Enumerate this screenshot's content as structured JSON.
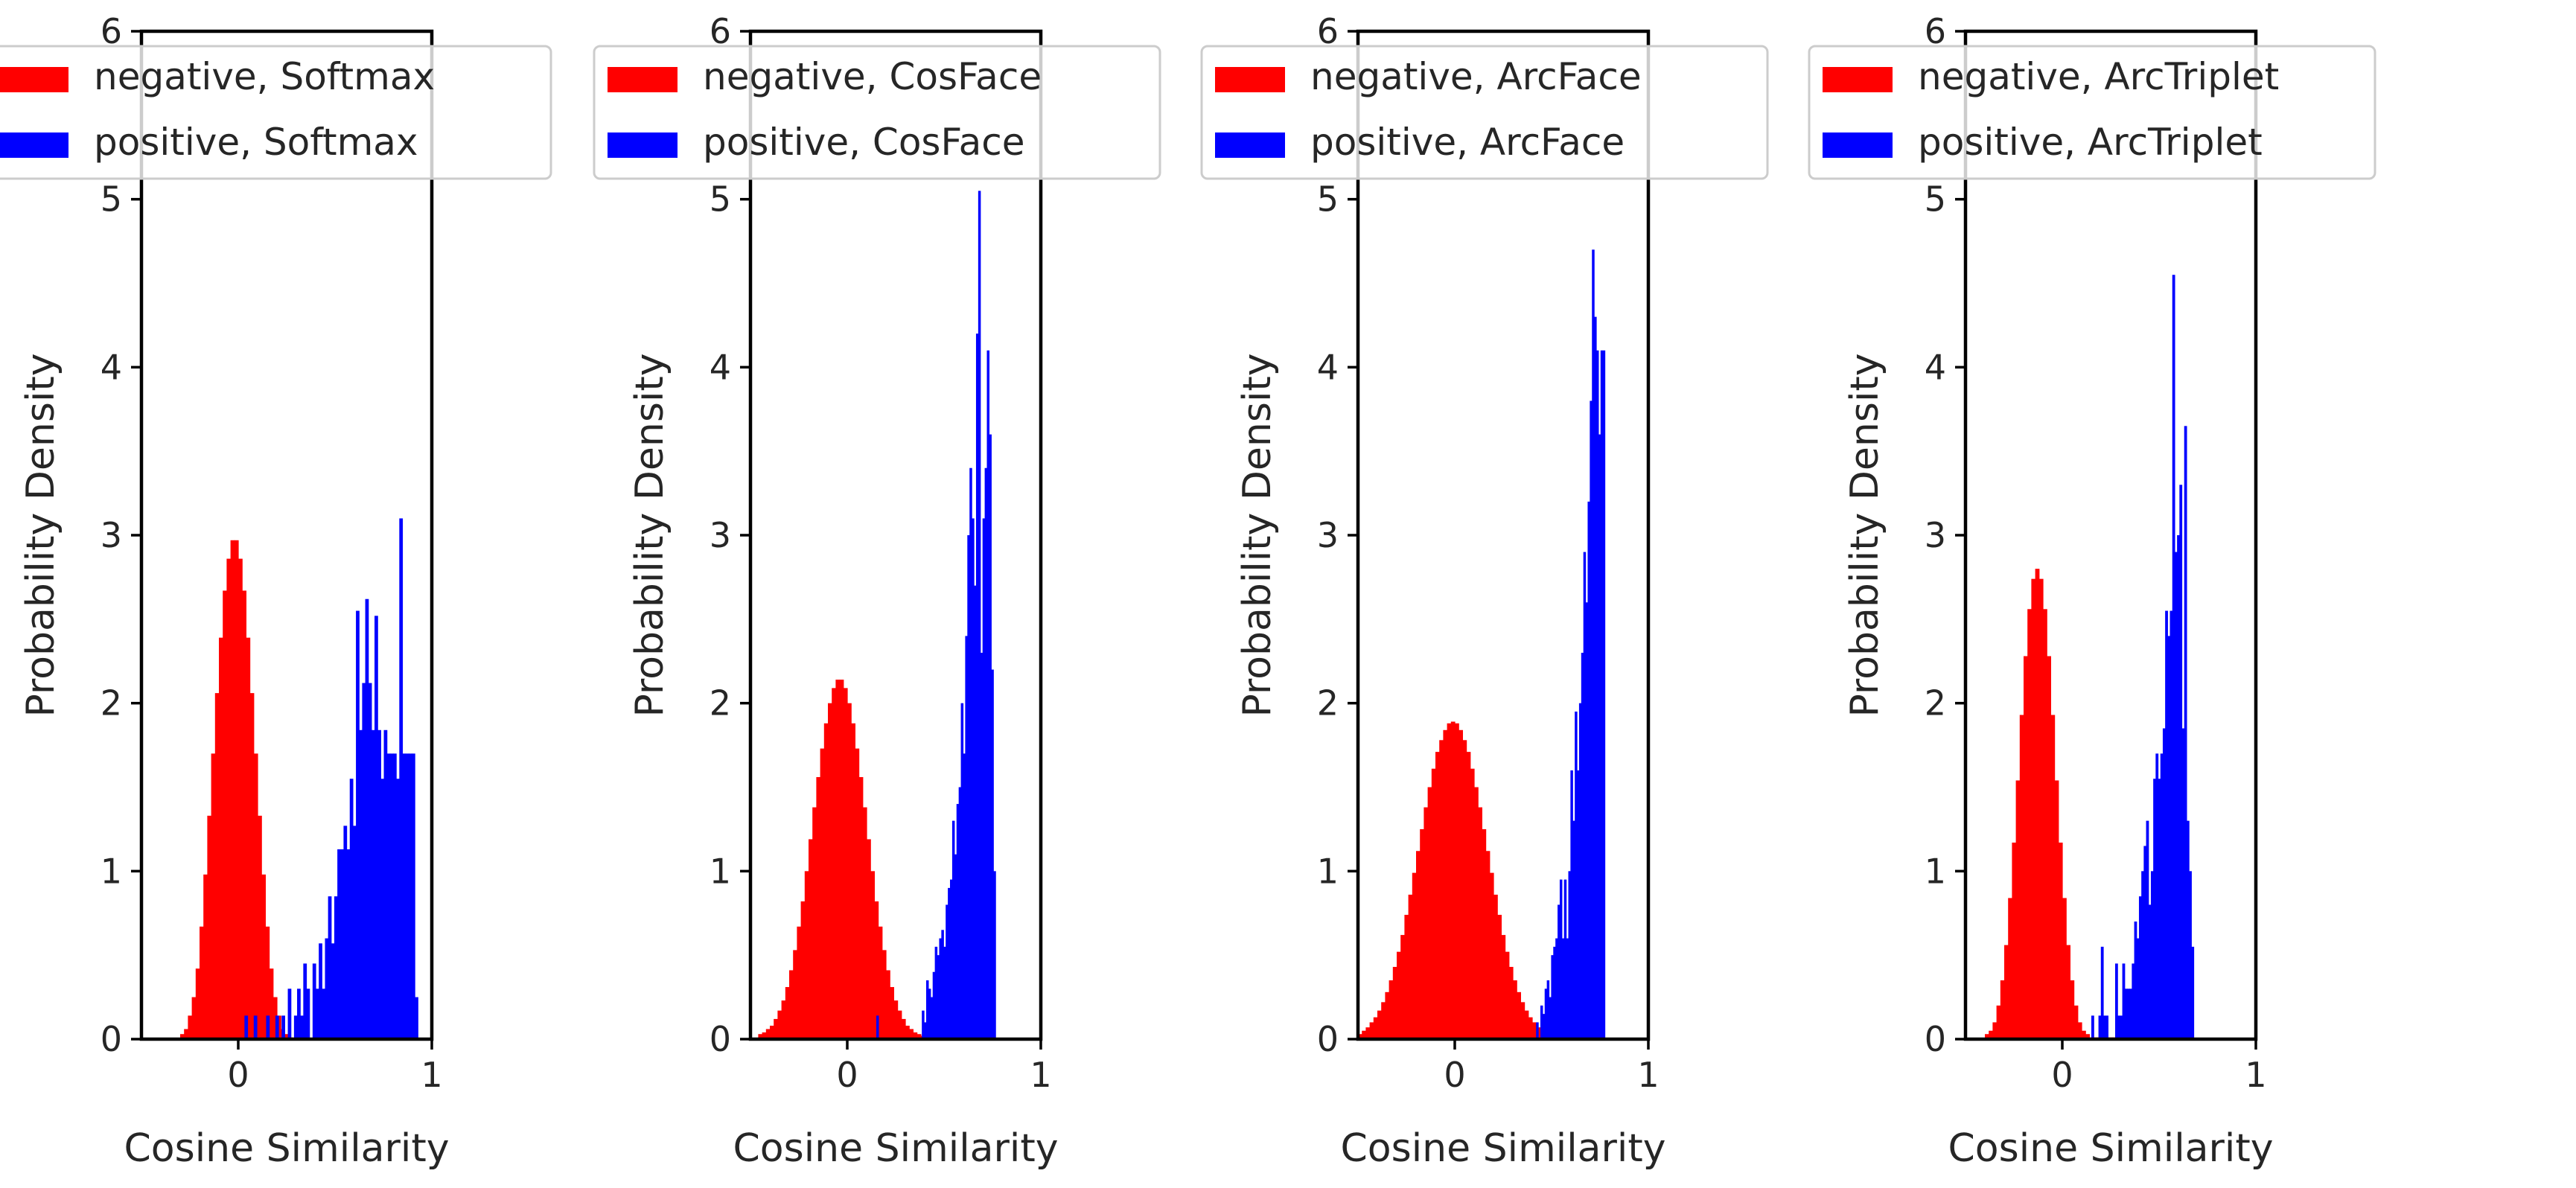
{
  "colors": {
    "negative": "#ff0000",
    "positive": "#0000ff",
    "axis": "#000000",
    "text": "#262626"
  },
  "chart_data": [
    {
      "type": "histogram",
      "title": "",
      "xlabel": "Cosine Similarity",
      "ylabel": "Probability Density",
      "xlim": [
        -0.5,
        1.0
      ],
      "ylim": [
        0,
        6
      ],
      "xticks": [
        0,
        1
      ],
      "xtick_labels": [
        "0",
        "1"
      ],
      "yticks": [
        0,
        1,
        2,
        3,
        4,
        5,
        6
      ],
      "ytick_labels": [
        "0",
        "1",
        "2",
        "3",
        "4",
        "5",
        "6"
      ],
      "legend_position": "upper right",
      "series": [
        {
          "name": "negative, Softmax",
          "role": "negative",
          "bin_start": -0.3,
          "bin_width": 0.02,
          "values": [
            0.03,
            0.06,
            0.14,
            0.25,
            0.42,
            0.67,
            0.98,
            1.33,
            1.7,
            2.06,
            2.39,
            2.67,
            2.86,
            2.97,
            2.97,
            2.86,
            2.67,
            2.39,
            2.06,
            1.7,
            1.33,
            0.98,
            0.67,
            0.42,
            0.25,
            0.14,
            0.06,
            0.03,
            0.01
          ]
        },
        {
          "name": "positive, Softmax",
          "role": "positive",
          "bin_start": 0.0,
          "bin_width": 0.016,
          "values": [
            0,
            0,
            0.14,
            0,
            0,
            0.14,
            0,
            0,
            0,
            0.14,
            0,
            0,
            0.14,
            0,
            0.14,
            0,
            0.3,
            0,
            0.14,
            0.3,
            0.14,
            0.45,
            0.3,
            0,
            0.45,
            0.3,
            0.57,
            0.3,
            0.6,
            0.85,
            0.57,
            0.85,
            1.13,
            1.13,
            1.27,
            1.13,
            1.55,
            1.27,
            2.55,
            1.84,
            2.12,
            2.62,
            2.12,
            1.84,
            2.52,
            1.84,
            1.55,
            1.84,
            1.7,
            1.7,
            1.7,
            1.55,
            3.1,
            1.7,
            1.7,
            1.7,
            1.7,
            0.25
          ]
        }
      ]
    },
    {
      "type": "histogram",
      "title": "",
      "xlabel": "Cosine Similarity",
      "ylabel": "Probability Density",
      "xlim": [
        -0.5,
        1.0
      ],
      "ylim": [
        0,
        6
      ],
      "xticks": [
        0,
        1
      ],
      "xtick_labels": [
        "0",
        "1"
      ],
      "yticks": [
        0,
        1,
        2,
        3,
        4,
        5,
        6
      ],
      "ytick_labels": [
        "0",
        "1",
        "2",
        "3",
        "4",
        "5",
        "6"
      ],
      "legend_position": "upper right",
      "series": [
        {
          "name": "negative, CosFace",
          "role": "negative",
          "bin_start": -0.46,
          "bin_width": 0.02,
          "values": [
            0.03,
            0.04,
            0.06,
            0.08,
            0.12,
            0.17,
            0.23,
            0.31,
            0.41,
            0.53,
            0.67,
            0.82,
            1.0,
            1.19,
            1.38,
            1.56,
            1.73,
            1.88,
            2.0,
            2.09,
            2.14,
            2.14,
            2.09,
            2.0,
            1.88,
            1.73,
            1.56,
            1.38,
            1.19,
            1.0,
            0.82,
            0.67,
            0.53,
            0.41,
            0.31,
            0.23,
            0.17,
            0.12,
            0.08,
            0.06,
            0.04,
            0.03,
            0.02,
            0.01,
            0.01,
            0.01
          ]
        },
        {
          "name": "positive, CosFace",
          "role": "positive",
          "bin_start": 0.15,
          "bin_width": 0.0112,
          "values": [
            0.14,
            0,
            0,
            0,
            0,
            0,
            0,
            0,
            0,
            0,
            0,
            0,
            0,
            0,
            0,
            0,
            0,
            0,
            0,
            0,
            0,
            0.17,
            0.1,
            0.35,
            0.3,
            0.25,
            0.4,
            0.55,
            0.5,
            0.6,
            0.65,
            0.55,
            0.8,
            0.9,
            0.95,
            1.3,
            1.1,
            1.4,
            1.5,
            2.0,
            1.7,
            2.4,
            3.0,
            3.4,
            3.1,
            2.7,
            4.2,
            5.05,
            2.3,
            3.1,
            3.4,
            4.1,
            3.6,
            2.2,
            1.0
          ]
        }
      ]
    },
    {
      "type": "histogram",
      "title": "",
      "xlabel": "Cosine Similarity",
      "ylabel": "Probability Density",
      "xlim": [
        -0.5,
        1.0
      ],
      "ylim": [
        0,
        6
      ],
      "xticks": [
        0,
        1
      ],
      "xtick_labels": [
        "0",
        "1"
      ],
      "yticks": [
        0,
        1,
        2,
        3,
        4,
        5,
        6
      ],
      "ytick_labels": [
        "0",
        "1",
        "2",
        "3",
        "4",
        "5",
        "6"
      ],
      "legend_position": "upper right",
      "series": [
        {
          "name": "negative, ArcFace",
          "role": "negative",
          "bin_start": -0.5,
          "bin_width": 0.02,
          "values": [
            0.03,
            0.05,
            0.07,
            0.1,
            0.13,
            0.17,
            0.22,
            0.28,
            0.35,
            0.43,
            0.52,
            0.62,
            0.74,
            0.86,
            0.99,
            1.12,
            1.25,
            1.38,
            1.5,
            1.61,
            1.71,
            1.78,
            1.84,
            1.88,
            1.89,
            1.88,
            1.84,
            1.78,
            1.71,
            1.61,
            1.5,
            1.38,
            1.25,
            1.12,
            0.99,
            0.86,
            0.74,
            0.62,
            0.52,
            0.43,
            0.35,
            0.28,
            0.22,
            0.17,
            0.13,
            0.1,
            0.07
          ]
        },
        {
          "name": "positive, ArcFace",
          "role": "positive",
          "bin_start": 0.42,
          "bin_width": 0.0111,
          "values": [
            0.1,
            0,
            0.2,
            0.15,
            0.3,
            0.35,
            0.25,
            0.5,
            0.55,
            0.6,
            0.8,
            0.95,
            0.6,
            0.95,
            0.6,
            1.0,
            1.6,
            1.3,
            1.95,
            1.6,
            2.0,
            2.3,
            2.9,
            2.6,
            3.2,
            3.8,
            4.7,
            4.3,
            4.1,
            3.6,
            4.1,
            4.1
          ]
        }
      ]
    },
    {
      "type": "histogram",
      "title": "",
      "xlabel": "Cosine Similarity",
      "ylabel": "Probability Density",
      "xlim": [
        -0.5,
        1.0
      ],
      "ylim": [
        0,
        6
      ],
      "xticks": [
        0,
        1
      ],
      "xtick_labels": [
        "0",
        "1"
      ],
      "yticks": [
        0,
        1,
        2,
        3,
        4,
        5,
        6
      ],
      "ytick_labels": [
        "0",
        "1",
        "2",
        "3",
        "4",
        "5",
        "6"
      ],
      "legend_position": "upper right",
      "series": [
        {
          "name": "negative, ArcTriplet",
          "role": "negative",
          "bin_start": -0.4,
          "bin_width": 0.02,
          "values": [
            0.03,
            0.05,
            0.1,
            0.2,
            0.35,
            0.56,
            0.84,
            1.17,
            1.54,
            1.93,
            2.28,
            2.56,
            2.74,
            2.8,
            2.74,
            2.56,
            2.28,
            1.93,
            1.54,
            1.17,
            0.84,
            0.56,
            0.35,
            0.2,
            0.1,
            0.05,
            0.03,
            0.01,
            0.01,
            0.01,
            0.01,
            0.01,
            0.01,
            0.01
          ]
        },
        {
          "name": "positive, ArcTriplet",
          "role": "positive",
          "bin_start": 0.15,
          "bin_width": 0.0123,
          "values": [
            0.14,
            0,
            0,
            0.14,
            0.55,
            0.14,
            0.14,
            0,
            0,
            0,
            0.45,
            0.14,
            0.14,
            0.45,
            0.3,
            0.3,
            0.3,
            0.45,
            0.7,
            0.6,
            0.85,
            1.0,
            1.15,
            1.3,
            0.8,
            1.0,
            1.55,
            1.7,
            1.55,
            1.7,
            1.85,
            2.55,
            2.4,
            2.55,
            4.55,
            2.9,
            3.0,
            3.3,
            1.85,
            3.65,
            1.3,
            1.0,
            0.55
          ]
        }
      ]
    }
  ]
}
